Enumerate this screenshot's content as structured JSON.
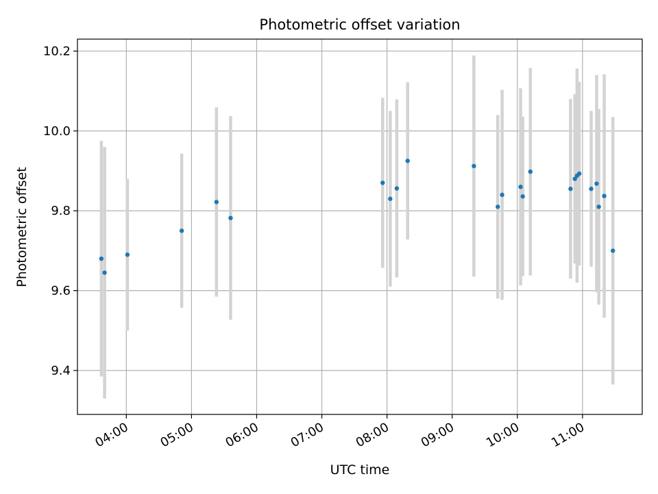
{
  "chart_data": {
    "type": "scatter",
    "title": "Photometric offset variation",
    "xlabel": "UTC time",
    "ylabel": "Photometric offset",
    "x_unit": "hours UTC",
    "xlim": [
      "03:15",
      "11:55"
    ],
    "ylim": [
      9.29,
      10.23
    ],
    "x_ticks": [
      "04:00",
      "05:00",
      "06:00",
      "07:00",
      "08:00",
      "09:00",
      "10:00",
      "11:00"
    ],
    "y_ticks": [
      "9.4",
      "9.6",
      "9.8",
      "10.0",
      "10.2"
    ],
    "grid": true,
    "marker_color": "#1f77b4",
    "errorbar_color": "#d3d3d3",
    "points": [
      {
        "x": "03:37",
        "y": 9.68,
        "err": 0.295
      },
      {
        "x": "03:40",
        "y": 9.645,
        "err": 0.315
      },
      {
        "x": "04:01",
        "y": 9.69,
        "err": 0.19
      },
      {
        "x": "04:51",
        "y": 9.75,
        "err": 0.193
      },
      {
        "x": "05:23",
        "y": 9.822,
        "err": 0.237
      },
      {
        "x": "05:36",
        "y": 9.782,
        "err": 0.255
      },
      {
        "x": "07:56",
        "y": 9.87,
        "err": 0.213
      },
      {
        "x": "08:03",
        "y": 9.83,
        "err": 0.22
      },
      {
        "x": "08:09",
        "y": 9.856,
        "err": 0.223
      },
      {
        "x": "08:19",
        "y": 9.925,
        "err": 0.197
      },
      {
        "x": "09:20",
        "y": 9.912,
        "err": 0.277
      },
      {
        "x": "09:42",
        "y": 9.81,
        "err": 0.23
      },
      {
        "x": "09:46",
        "y": 9.84,
        "err": 0.263
      },
      {
        "x": "10:03",
        "y": 9.86,
        "err": 0.247
      },
      {
        "x": "10:05",
        "y": 9.836,
        "err": 0.2
      },
      {
        "x": "10:12",
        "y": 9.898,
        "err": 0.26
      },
      {
        "x": "10:49",
        "y": 9.855,
        "err": 0.225
      },
      {
        "x": "10:53",
        "y": 9.88,
        "err": 0.212
      },
      {
        "x": "10:55",
        "y": 9.888,
        "err": 0.268
      },
      {
        "x": "10:57",
        "y": 9.893,
        "err": 0.23
      },
      {
        "x": "11:08",
        "y": 9.855,
        "err": 0.195
      },
      {
        "x": "11:13",
        "y": 9.868,
        "err": 0.272
      },
      {
        "x": "11:15",
        "y": 9.81,
        "err": 0.245
      },
      {
        "x": "11:20",
        "y": 9.837,
        "err": 0.305
      },
      {
        "x": "11:28",
        "y": 9.7,
        "err": 0.335
      }
    ]
  }
}
